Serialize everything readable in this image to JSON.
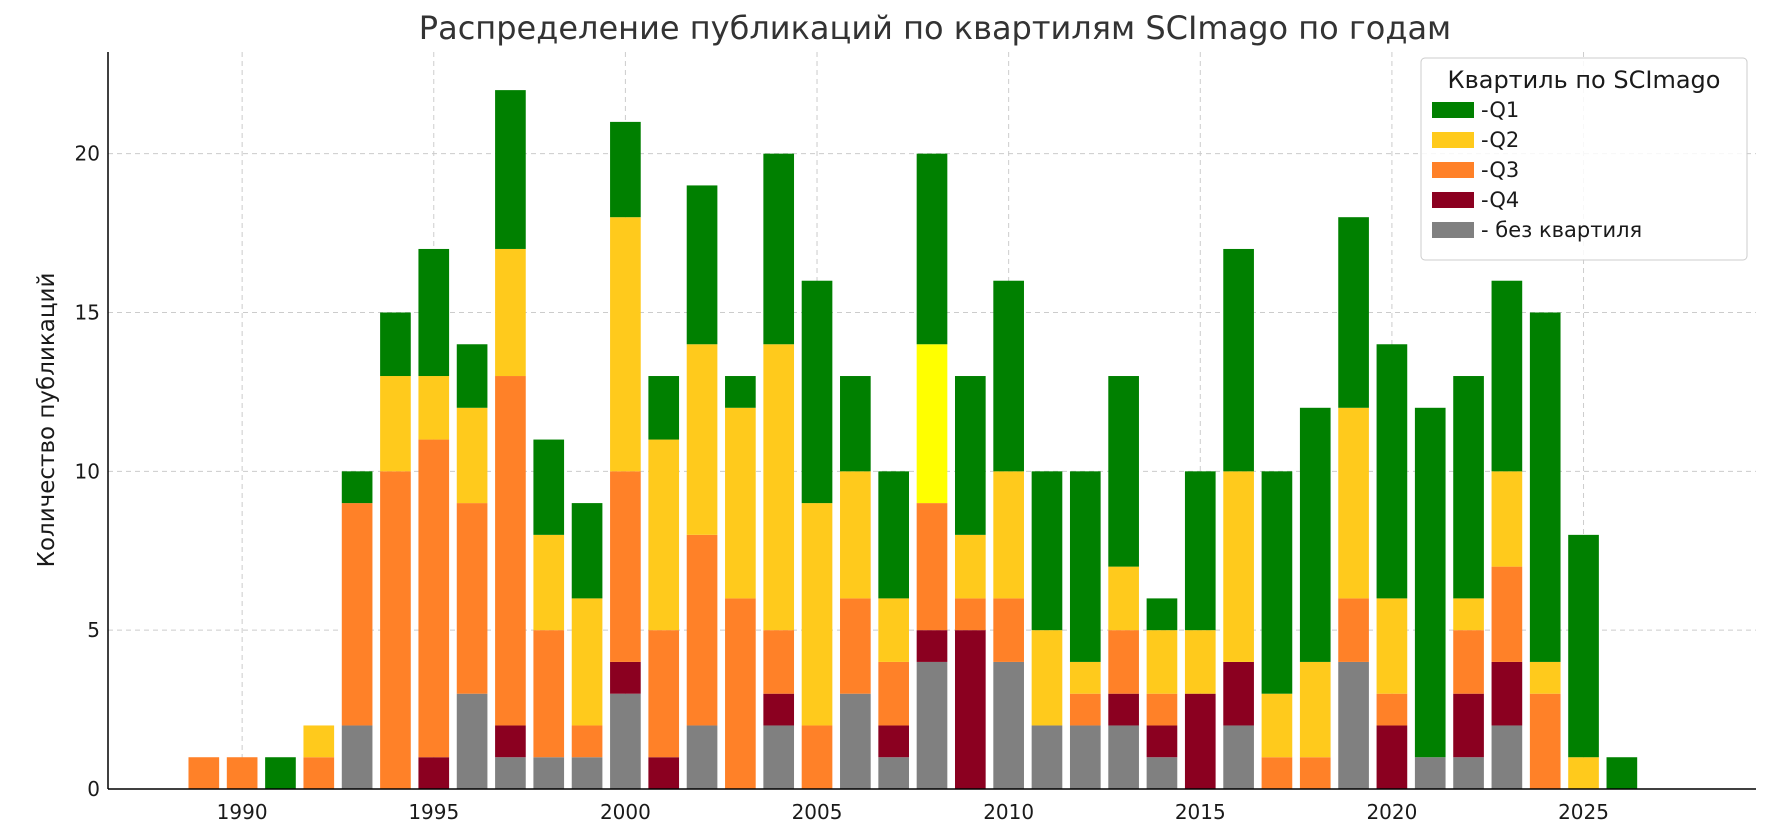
{
  "chart_data": {
    "type": "bar",
    "stacked": true,
    "title": "Распределение публикаций по квартилям SCImago по годам",
    "xlabel": "",
    "ylabel": "Количество публикаций",
    "xlim": [
      1986.5,
      2029.5
    ],
    "ylim": [
      0,
      23.2
    ],
    "xticks": [
      1990,
      1995,
      2000,
      2005,
      2010,
      2015,
      2020,
      2025
    ],
    "yticks": [
      0,
      5,
      10,
      15,
      20
    ],
    "grid": true,
    "legend": {
      "title": "Квартиль по SCImago",
      "placement": "top-right"
    },
    "x": [
      1989,
      1990,
      1991,
      1992,
      1993,
      1994,
      1995,
      1996,
      1997,
      1998,
      1999,
      2000,
      2001,
      2002,
      2003,
      2004,
      2005,
      2006,
      2007,
      2008,
      2009,
      2010,
      2011,
      2012,
      2013,
      2014,
      2015,
      2016,
      2017,
      2018,
      2019,
      2020,
      2021,
      2022,
      2023,
      2024,
      2025,
      2026
    ],
    "series": [
      {
        "name": "- без квартиля",
        "color": "#808080",
        "values": [
          0,
          0,
          0,
          0,
          2,
          0,
          0,
          3,
          1,
          1,
          1,
          3,
          0,
          2,
          0,
          2,
          0,
          3,
          1,
          4,
          0,
          4,
          2,
          2,
          2,
          1,
          0,
          2,
          0,
          0,
          4,
          0,
          1,
          1,
          2,
          0,
          0,
          0
        ]
      },
      {
        "name": "-Q4",
        "color": "#8b0020",
        "values": [
          0,
          0,
          0,
          0,
          0,
          0,
          1,
          0,
          1,
          0,
          0,
          1,
          1,
          0,
          0,
          1,
          0,
          0,
          1,
          1,
          5,
          0,
          0,
          0,
          1,
          1,
          3,
          2,
          0,
          0,
          0,
          2,
          0,
          2,
          2,
          0,
          0,
          0
        ]
      },
      {
        "name": "-Q3",
        "color": "#ff8128",
        "values": [
          1,
          1,
          0,
          1,
          7,
          10,
          10,
          6,
          11,
          4,
          1,
          6,
          4,
          6,
          6,
          2,
          2,
          3,
          2,
          4,
          1,
          2,
          0,
          1,
          2,
          1,
          0,
          0,
          1,
          1,
          2,
          1,
          0,
          2,
          3,
          3,
          0,
          0
        ]
      },
      {
        "name": "-Q2",
        "color": "#ffca1c",
        "values": [
          0,
          0,
          0,
          1,
          0,
          3,
          2,
          3,
          4,
          3,
          4,
          8,
          6,
          6,
          6,
          9,
          7,
          4,
          2,
          5,
          2,
          4,
          3,
          1,
          2,
          2,
          2,
          6,
          2,
          3,
          6,
          3,
          0,
          1,
          3,
          1,
          1,
          0
        ]
      },
      {
        "name": "-Q1",
        "color": "#008000",
        "values": [
          0,
          0,
          1,
          0,
          1,
          2,
          4,
          2,
          5,
          3,
          3,
          3,
          2,
          5,
          1,
          6,
          7,
          3,
          4,
          6,
          5,
          6,
          5,
          6,
          6,
          1,
          5,
          7,
          7,
          8,
          6,
          8,
          11,
          7,
          6,
          11,
          7,
          1
        ]
      }
    ],
    "highlights": [
      {
        "x": 2008,
        "series": "-Q2",
        "color": "#ffff00"
      }
    ]
  }
}
